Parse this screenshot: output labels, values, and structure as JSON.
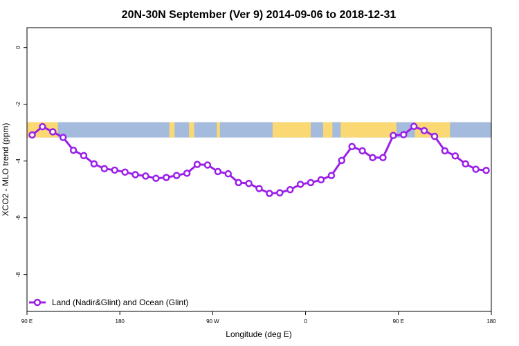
{
  "chart_data": {
    "type": "line",
    "title": "20N-30N September (Ver 9)   2014-09-06 to 2018-12-31",
    "xlabel": "Longitude (deg E)",
    "ylabel": "XCO2 - MLO trend (ppm)",
    "x_ticks": [
      {
        "value": 90,
        "label": "90 E"
      },
      {
        "value": 180,
        "label": "180"
      },
      {
        "value": 270,
        "label": "90 W"
      },
      {
        "value": 360,
        "label": "0"
      },
      {
        "value": 450,
        "label": "90 E"
      },
      {
        "value": 540,
        "label": "180"
      }
    ],
    "y_ticks": [
      0,
      -2,
      -4,
      -6,
      -8
    ],
    "xlim": [
      90,
      540
    ],
    "ylim": [
      -9.3,
      0.7
    ],
    "grid": false,
    "legend_position": "bottom-left",
    "colors": {
      "series": "#9b1fe8",
      "land": "#fad873",
      "ocean": "#a4bbdd"
    },
    "series": [
      {
        "name": "Land (Nadir&Glint) and Ocean (Glint)",
        "x": [
          95,
          105,
          115,
          125,
          135,
          145,
          155,
          165,
          175,
          185,
          195,
          205,
          215,
          225,
          235,
          245,
          255,
          265,
          275,
          285,
          295,
          305,
          315,
          325,
          335,
          345,
          355,
          365,
          375,
          385,
          395,
          405,
          415,
          425,
          435,
          445,
          455,
          465,
          475,
          485,
          495,
          505,
          515,
          525,
          535
        ],
        "values": [
          -3.08,
          -2.79,
          -2.97,
          -3.17,
          -3.62,
          -3.81,
          -4.1,
          -4.27,
          -4.32,
          -4.39,
          -4.48,
          -4.53,
          -4.61,
          -4.58,
          -4.51,
          -4.43,
          -4.12,
          -4.14,
          -4.37,
          -4.45,
          -4.76,
          -4.79,
          -4.97,
          -5.14,
          -5.12,
          -5.01,
          -4.82,
          -4.76,
          -4.66,
          -4.51,
          -3.98,
          -3.49,
          -3.64,
          -3.88,
          -3.88,
          -3.1,
          -3.07,
          -2.78,
          -2.93,
          -3.13,
          -3.64,
          -3.82,
          -4.1,
          -4.29,
          -4.33
        ]
      }
    ],
    "map_strip": {
      "y_range": [
        -2.63,
        -3.17
      ],
      "land_segments": [
        [
          90,
          120
        ],
        [
          228,
          233
        ],
        [
          247,
          252
        ],
        [
          274,
          277
        ],
        [
          328,
          365
        ],
        [
          377,
          386
        ],
        [
          394,
          448
        ],
        [
          466,
          500
        ]
      ]
    }
  }
}
